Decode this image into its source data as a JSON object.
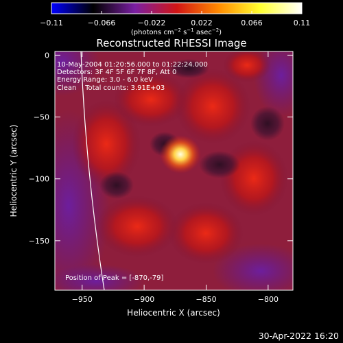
{
  "colorbar": {
    "colors": [
      "#0000ff",
      "#000000",
      "#7a1fa3",
      "#d21515",
      "#ff8a00",
      "#ffff30",
      "#ffffff"
    ],
    "ticks": [
      {
        "label": "−0.11",
        "value": -0.11
      },
      {
        "label": "−0.066",
        "value": -0.066
      },
      {
        "label": "−0.022",
        "value": -0.022
      },
      {
        "label": "0.022",
        "value": 0.022
      },
      {
        "label": "0.066",
        "value": 0.066
      },
      {
        "label": "0.11",
        "value": 0.11
      }
    ],
    "units_prefix": "(photons cm",
    "units_exp1": "−2",
    "units_mid1": " s",
    "units_exp2": "−1",
    "units_mid2": " asec",
    "units_exp3": "−2",
    "units_suffix": ")"
  },
  "image": {
    "title": "Reconstructed RHESSI Image",
    "info_lines": [
      "10-May-2004 01:20:56.000 to 01:22:24.000",
      "Detectors: 3F 4F 5F 6F 7F 8F, Att 0",
      "Energy Range: 3.0 - 6.0 keV",
      "Clean    Total counts: 3.91E+03"
    ],
    "peak_label": "Position of Peak = [-870,-79]",
    "xlabel": "Heliocentric X (arcsec)",
    "ylabel": "Heliocentric Y (arcsec)",
    "xlim": [
      -972,
      -780
    ],
    "ylim": [
      -190,
      3
    ],
    "x_ticks": [
      {
        "label": "−950",
        "value": -950
      },
      {
        "label": "−900",
        "value": -900
      },
      {
        "label": "−850",
        "value": -850
      },
      {
        "label": "−800",
        "value": -800
      }
    ],
    "y_ticks": [
      {
        "label": "0",
        "value": 0
      },
      {
        "label": "−50",
        "value": -50
      },
      {
        "label": "−100",
        "value": -100
      },
      {
        "label": "−150",
        "value": -150
      }
    ]
  },
  "footer": {
    "timestamp": "30-Apr-2022 16:20"
  }
}
